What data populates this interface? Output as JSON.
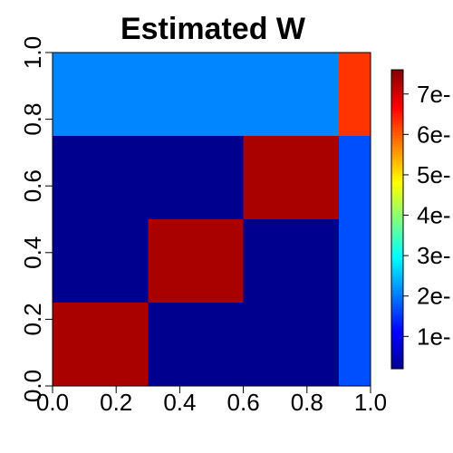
{
  "chart_data": {
    "type": "heatmap",
    "title": "Estimated W",
    "xlabel": "",
    "ylabel": "",
    "xlim": [
      0,
      1
    ],
    "ylim": [
      0,
      1
    ],
    "x_ticks": [
      "0.0",
      "0.2",
      "0.4",
      "0.6",
      "0.8",
      "1.0"
    ],
    "y_ticks": [
      "0.0",
      "0.2",
      "0.4",
      "0.6",
      "0.8",
      "1.0"
    ],
    "x_tick_values": [
      0,
      0.2,
      0.4,
      0.6,
      0.8,
      1.0
    ],
    "y_tick_values": [
      0,
      0.2,
      0.4,
      0.6,
      0.8,
      1.0
    ],
    "colorscale": "jet",
    "value_range": [
      0.2,
      7.6
    ],
    "colorbar": {
      "ticks": [
        "1e-",
        "2e-",
        "3e-",
        "4e-",
        "5e-",
        "6e-",
        "7e-"
      ],
      "tick_values": [
        1,
        2,
        3,
        4,
        5,
        6,
        7
      ]
    },
    "regions": [
      {
        "x": [
          0.0,
          0.3
        ],
        "y": [
          0.0,
          0.25
        ],
        "value": 7.3
      },
      {
        "x": [
          0.3,
          0.9
        ],
        "y": [
          0.0,
          0.25
        ],
        "value": 0.2
      },
      {
        "x": [
          0.0,
          0.3
        ],
        "y": [
          0.25,
          0.5
        ],
        "value": 0.2
      },
      {
        "x": [
          0.3,
          0.6
        ],
        "y": [
          0.25,
          0.5
        ],
        "value": 7.3
      },
      {
        "x": [
          0.6,
          0.9
        ],
        "y": [
          0.25,
          0.5
        ],
        "value": 0.2
      },
      {
        "x": [
          0.0,
          0.6
        ],
        "y": [
          0.5,
          0.75
        ],
        "value": 0.2
      },
      {
        "x": [
          0.6,
          0.9
        ],
        "y": [
          0.5,
          0.75
        ],
        "value": 7.3
      },
      {
        "x": [
          0.0,
          0.9
        ],
        "y": [
          0.75,
          1.0
        ],
        "value": 2.1
      },
      {
        "x": [
          0.9,
          1.0
        ],
        "y": [
          0.0,
          0.75
        ],
        "value": 1.7
      },
      {
        "x": [
          0.9,
          1.0
        ],
        "y": [
          0.75,
          1.0
        ],
        "value": 6.3
      }
    ]
  }
}
